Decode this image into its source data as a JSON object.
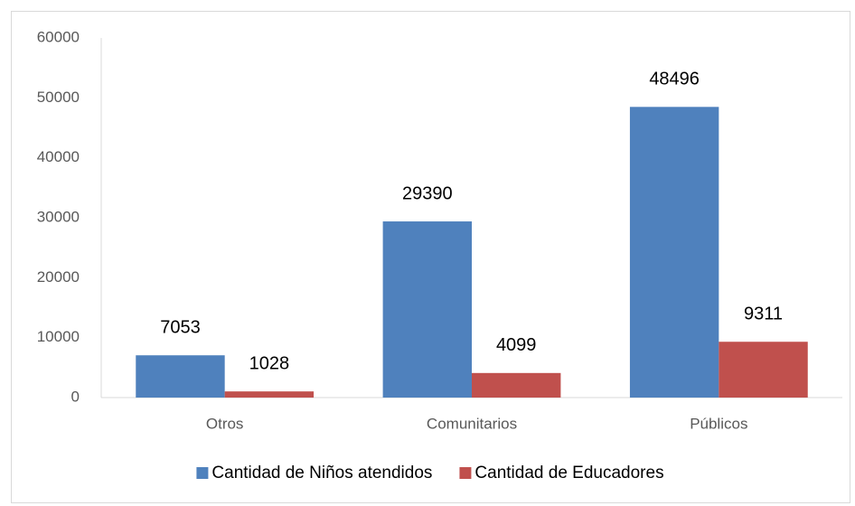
{
  "chart_data": {
    "type": "bar",
    "categories": [
      "Otros",
      "Comunitarios",
      "Públicos"
    ],
    "series": [
      {
        "name": "Cantidad de Niños atendidos",
        "color": "#4f81bd",
        "values": [
          7053,
          29390,
          48496
        ]
      },
      {
        "name": "Cantidad de Educadores",
        "color": "#c0504d",
        "values": [
          1028,
          4099,
          9311
        ]
      }
    ],
    "ylim": [
      0,
      60000
    ],
    "yticks": [
      0,
      10000,
      20000,
      30000,
      40000,
      50000,
      60000
    ],
    "grid": false,
    "legend": "bottom"
  }
}
